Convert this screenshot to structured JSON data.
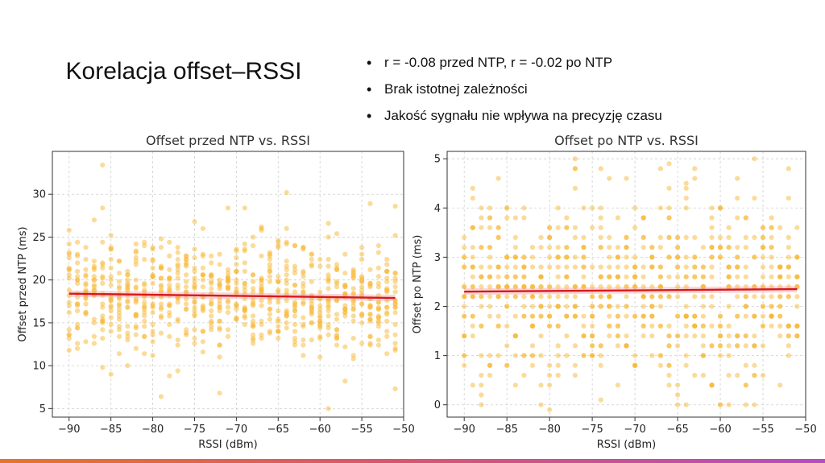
{
  "slide": {
    "title": "Korelacja offset–RSSI",
    "bullets": [
      "r = -0.08 przed NTP, r = -0.02 po NTP",
      "Brak istotnej zależności",
      "Jakość sygnału nie wpływa na precyzję czasu"
    ],
    "accent_colors": [
      "#e8742a",
      "#d9576a",
      "#b34ec0"
    ]
  },
  "chart_data": [
    {
      "type": "scatter",
      "title": "Offset przed NTP vs. RSSI",
      "xlabel": "RSSI (dBm)",
      "ylabel": "Offset przed NTP (ms)",
      "xlim": [
        -92,
        -50
      ],
      "ylim": [
        4,
        35
      ],
      "xticks": [
        -90,
        -85,
        -80,
        -75,
        -70,
        -65,
        -60,
        -55,
        -50
      ],
      "xtick_labels": [
        "−90",
        "−85",
        "−80",
        "−75",
        "−70",
        "−65",
        "−60",
        "−55",
        "−50"
      ],
      "yticks": [
        5,
        10,
        15,
        20,
        25,
        30
      ],
      "ytick_labels": [
        "5",
        "10",
        "15",
        "20",
        "25",
        "30"
      ],
      "grid": true,
      "point_color": "#f7b733",
      "trend_color": "#d7191c",
      "trend": {
        "x": [
          -90,
          -51
        ],
        "y": [
          18.4,
          17.9
        ]
      },
      "x_range": [
        -90,
        -51
      ],
      "points_per_x": 20,
      "y_mean": 18.2,
      "y_sd": 3.3,
      "y_bounds": [
        5,
        34
      ],
      "seed": 7,
      "outliers": [
        [
          -86,
          33.4
        ],
        [
          -64,
          30.2
        ],
        [
          -59,
          5.0
        ],
        [
          -79,
          6.4
        ],
        [
          -72,
          6.8
        ],
        [
          -51,
          7.3
        ],
        [
          -54,
          28.9
        ]
      ]
    },
    {
      "type": "scatter",
      "title": "Offset po NTP vs. RSSI",
      "xlabel": "RSSI (dBm)",
      "ylabel": "Offset po NTP (ms)",
      "xlim": [
        -92,
        -50
      ],
      "ylim": [
        -0.25,
        5.15
      ],
      "xticks": [
        -90,
        -85,
        -80,
        -75,
        -70,
        -65,
        -60,
        -55,
        -50
      ],
      "xtick_labels": [
        "−90",
        "−85",
        "−80",
        "−75",
        "−70",
        "−65",
        "−60",
        "−55",
        "−50"
      ],
      "yticks": [
        0,
        1,
        2,
        3,
        4,
        5
      ],
      "ytick_labels": [
        "0",
        "1",
        "2",
        "3",
        "4",
        "5"
      ],
      "grid": true,
      "point_color": "#f7b733",
      "trend_color": "#d7191c",
      "trend": {
        "x": [
          -90,
          -51
        ],
        "y": [
          2.3,
          2.35
        ]
      },
      "x_range": [
        -90,
        -51
      ],
      "points_per_x": 20,
      "y_mean": 2.3,
      "y_sd": 0.95,
      "y_bounds": [
        -0.1,
        4.9
      ],
      "seed": 13,
      "outliers": [
        [
          -66,
          4.9
        ],
        [
          -77,
          4.8
        ],
        [
          -73,
          4.6
        ],
        [
          -64,
          4.5
        ],
        [
          -89,
          4.4
        ],
        [
          -80,
          -0.1
        ],
        [
          -60,
          0.0
        ],
        [
          -74,
          0.1
        ]
      ]
    }
  ]
}
